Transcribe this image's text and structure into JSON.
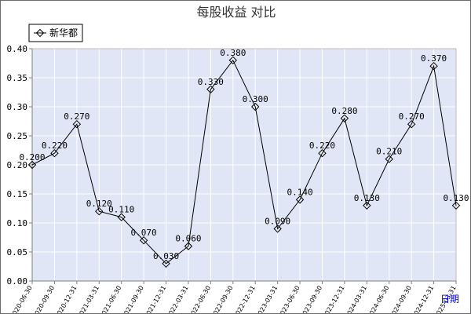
{
  "chart_data": {
    "type": "line",
    "title": "每股收益  对比",
    "xlabel": "日期",
    "ylabel": "",
    "ylim": [
      0,
      0.4
    ],
    "yticks": [
      "0.00",
      "0.05",
      "0.10",
      "0.15",
      "0.20",
      "0.25",
      "0.30",
      "0.35",
      "0.40"
    ],
    "grid": true,
    "legend_position": "top-left",
    "colors": {
      "plot_bg": "#e1e6f6",
      "grid": "#ffffff",
      "line": "#000000",
      "axis": "#7f7f7f"
    },
    "categories": [
      "2020-06-30",
      "2020-09-30",
      "2020-12-31",
      "2021-03-31",
      "2021-06-30",
      "2021-09-30",
      "2021-12-31",
      "2022-03-31",
      "2022-06-30",
      "2022-09-30",
      "2022-12-31",
      "2023-03-31",
      "2023-06-30",
      "2023-09-30",
      "2023-12-31",
      "2024-03-31",
      "2024-06-30",
      "2024-09-30",
      "2024-12-31",
      "2025-03-31"
    ],
    "series": [
      {
        "name": "新华都",
        "values": [
          0.2,
          0.22,
          0.27,
          0.12,
          0.11,
          0.07,
          0.03,
          0.06,
          0.33,
          0.38,
          0.3,
          0.09,
          0.14,
          0.22,
          0.28,
          0.13,
          0.21,
          0.27,
          0.37,
          0.13
        ],
        "value_labels": [
          "0.200",
          "0.220",
          "0.270",
          "0.120",
          "0.110",
          "0.070",
          "0.030",
          "0.060",
          "0.330",
          "0.380",
          "0.300",
          "0.090",
          "0.140",
          "0.220",
          "0.280",
          "0.130",
          "0.210",
          "0.270",
          "0.370",
          "0.130"
        ]
      }
    ]
  }
}
